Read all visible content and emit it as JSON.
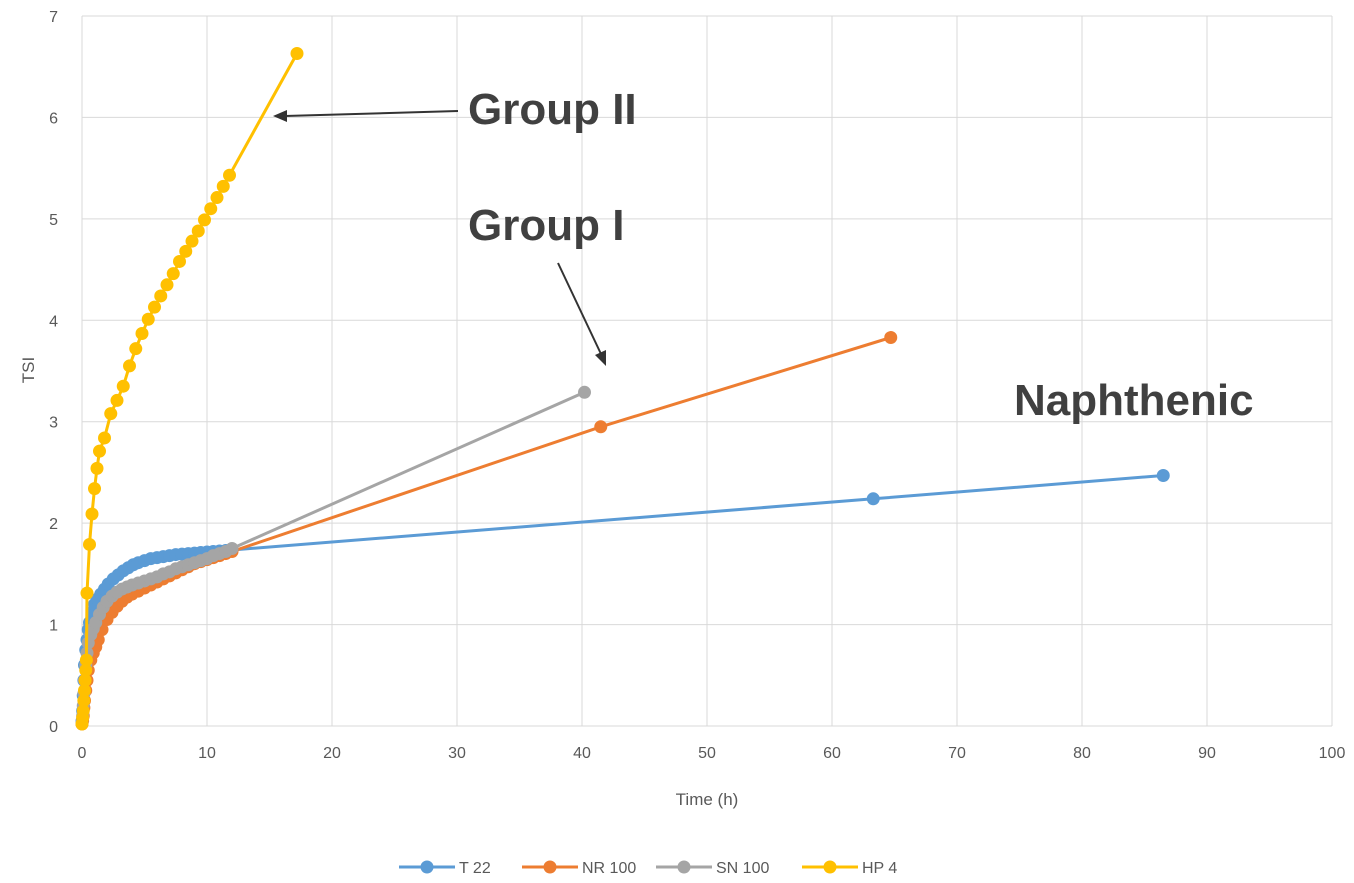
{
  "chart_data": {
    "type": "scatter",
    "xlabel": "Time (h)",
    "ylabel": "TSI",
    "xlim": [
      0,
      100
    ],
    "ylim": [
      0,
      7
    ],
    "xticks": [
      "0",
      "10",
      "20",
      "30",
      "40",
      "50",
      "60",
      "70",
      "80",
      "90",
      "100"
    ],
    "yticks": [
      "0",
      "1",
      "2",
      "3",
      "4",
      "5",
      "6",
      "7"
    ],
    "grid": true,
    "legend_position": "bottom",
    "annotations": [
      {
        "text": "Group II"
      },
      {
        "text": "Group I"
      },
      {
        "text": "Naphthenic"
      }
    ],
    "series": [
      {
        "name": "T 22",
        "color": "#5B9BD5",
        "x": [
          0,
          0.05,
          0.1,
          0.15,
          0.2,
          0.3,
          0.4,
          0.5,
          0.6,
          0.8,
          1.0,
          1.2,
          1.5,
          1.8,
          2.1,
          2.5,
          2.9,
          3.3,
          3.7,
          4.1,
          4.5,
          5.0,
          5.5,
          6.0,
          6.5,
          7.0,
          7.5,
          8.0,
          8.5,
          9.0,
          9.5,
          10.0,
          10.5,
          11.0,
          11.5,
          12.0,
          63.3,
          86.5
        ],
        "y": [
          0.05,
          0.15,
          0.3,
          0.45,
          0.6,
          0.75,
          0.85,
          0.95,
          1.02,
          1.12,
          1.2,
          1.25,
          1.3,
          1.35,
          1.4,
          1.45,
          1.49,
          1.53,
          1.56,
          1.59,
          1.61,
          1.63,
          1.65,
          1.66,
          1.67,
          1.68,
          1.69,
          1.695,
          1.7,
          1.705,
          1.71,
          1.715,
          1.72,
          1.725,
          1.73,
          1.735,
          2.24,
          2.47
        ]
      },
      {
        "name": "NR 100",
        "color": "#ED7D31",
        "x": [
          0,
          0.05,
          0.1,
          0.15,
          0.2,
          0.3,
          0.4,
          0.5,
          0.7,
          0.9,
          1.1,
          1.3,
          1.6,
          2.0,
          2.4,
          2.8,
          3.2,
          3.6,
          4.0,
          4.5,
          5.0,
          5.5,
          6.0,
          6.5,
          7.0,
          7.5,
          8.0,
          8.5,
          9.0,
          9.5,
          10.0,
          10.5,
          11.0,
          11.5,
          12.0,
          41.5,
          64.7
        ],
        "y": [
          0.02,
          0.05,
          0.1,
          0.18,
          0.25,
          0.35,
          0.45,
          0.55,
          0.65,
          0.72,
          0.78,
          0.85,
          0.95,
          1.05,
          1.12,
          1.18,
          1.23,
          1.27,
          1.3,
          1.33,
          1.36,
          1.39,
          1.42,
          1.45,
          1.48,
          1.51,
          1.54,
          1.57,
          1.6,
          1.62,
          1.64,
          1.66,
          1.68,
          1.7,
          1.72,
          2.95,
          3.83
        ]
      },
      {
        "name": "SN 100",
        "color": "#A5A5A5",
        "x": [
          0,
          0.05,
          0.1,
          0.15,
          0.2,
          0.3,
          0.4,
          0.5,
          0.7,
          0.9,
          1.1,
          1.4,
          1.7,
          2.0,
          2.4,
          2.8,
          3.2,
          3.6,
          4.0,
          4.5,
          5.0,
          5.5,
          6.0,
          6.5,
          7.0,
          7.5,
          8.0,
          8.5,
          9.0,
          9.5,
          10.0,
          10.5,
          11.0,
          11.5,
          12.0,
          40.2
        ],
        "y": [
          0.03,
          0.1,
          0.2,
          0.32,
          0.45,
          0.6,
          0.72,
          0.82,
          0.9,
          0.96,
          1.02,
          1.1,
          1.17,
          1.23,
          1.28,
          1.32,
          1.35,
          1.37,
          1.39,
          1.41,
          1.43,
          1.45,
          1.47,
          1.5,
          1.52,
          1.55,
          1.57,
          1.59,
          1.61,
          1.63,
          1.65,
          1.68,
          1.7,
          1.72,
          1.75,
          3.29
        ]
      },
      {
        "name": "HP 4",
        "color": "#FFC000",
        "x": [
          0,
          0.05,
          0.1,
          0.15,
          0.2,
          0.25,
          0.3,
          0.35,
          0.4,
          0.6,
          0.8,
          1.0,
          1.2,
          1.4,
          1.8,
          2.3,
          2.8,
          3.3,
          3.8,
          4.3,
          4.8,
          5.3,
          5.8,
          6.3,
          6.8,
          7.3,
          7.8,
          8.3,
          8.8,
          9.3,
          9.8,
          10.3,
          10.8,
          11.3,
          11.8,
          17.2
        ],
        "y": [
          0.02,
          0.08,
          0.15,
          0.25,
          0.35,
          0.45,
          0.55,
          0.65,
          1.31,
          1.79,
          2.09,
          2.34,
          2.54,
          2.71,
          2.84,
          3.08,
          3.21,
          3.35,
          3.55,
          3.72,
          3.87,
          4.01,
          4.13,
          4.24,
          4.35,
          4.46,
          4.58,
          4.68,
          4.78,
          4.88,
          4.99,
          5.1,
          5.21,
          5.32,
          5.43,
          6.63
        ]
      }
    ]
  }
}
